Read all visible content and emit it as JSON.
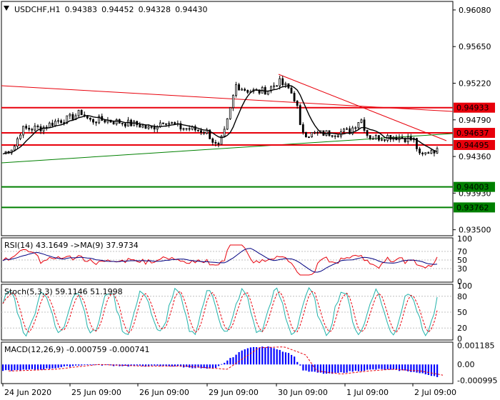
{
  "header": {
    "symbol": "USDCHF,H1",
    "open": "0.94383",
    "high": "0.94452",
    "low": "0.94328",
    "close": "0.94430"
  },
  "price_axis": {
    "ticks": [
      "0.96080",
      "0.95650",
      "0.95220",
      "0.94790",
      "0.94360",
      "0.93930",
      "0.93500"
    ],
    "level_tags": [
      {
        "label": "0.94933",
        "color": "#e8000b",
        "kind": "resistance"
      },
      {
        "label": "0.94637",
        "color": "#e8000b",
        "kind": "resistance"
      },
      {
        "label": "0.94495",
        "color": "#e8000b",
        "kind": "resistance"
      },
      {
        "label": "0.94003",
        "color": "#008000",
        "kind": "support"
      },
      {
        "label": "0.93762",
        "color": "#008000",
        "kind": "support"
      }
    ]
  },
  "time_axis": {
    "labels": [
      "24 Jun 2020",
      "25 Jun 09:00",
      "26 Jun 09:00",
      "29 Jun 09:00",
      "30 Jun 09:00",
      "1 Jul 09:00",
      "2 Jul 09:00"
    ]
  },
  "rsi": {
    "label": "RSI(14) 43.1649 ->MA(9) 37.9734",
    "ticks": [
      "70",
      "50",
      "30",
      "0"
    ],
    "ticks_extra": "100"
  },
  "stoch": {
    "label": "Stoch(5,3,3) 59.1146 51.1998",
    "ticks": [
      "100",
      "80",
      "50",
      "20",
      "0"
    ]
  },
  "macd": {
    "label": "MACD(12,26,9) -0.000759 -0.000741",
    "ticks": [
      "0.001185",
      "0.00",
      "-0.000995"
    ]
  },
  "colors": {
    "resistance": "#e8000b",
    "support": "#008000",
    "candle": "#000000",
    "ma": "#000000",
    "rsi_line": "#e8000b",
    "rsi_ma": "#000080",
    "stoch_main": "#20b2aa",
    "stoch_signal": "#e8000b",
    "macd_hist": "#0000ff",
    "macd_signal": "#e8000b"
  },
  "chart_data": {
    "type": "line",
    "title": "USDCHF,H1",
    "ylim": [
      0.9343,
      0.9618
    ],
    "xlabel": "",
    "ylabel": "",
    "x": [
      "24 Jun 2020",
      "25 Jun 09:00",
      "26 Jun 09:00",
      "29 Jun 09:00",
      "30 Jun 09:00",
      "1 Jul 09:00",
      "2 Jul 09:00"
    ],
    "series": [
      {
        "values": [
          0.944,
          0.9481,
          0.9482,
          0.9459,
          0.952,
          0.9467,
          0.944
        ]
      }
    ],
    "horizontal_levels": [
      0.94933,
      0.94637,
      0.94495,
      0.94003,
      0.93762
    ],
    "grid": false
  }
}
